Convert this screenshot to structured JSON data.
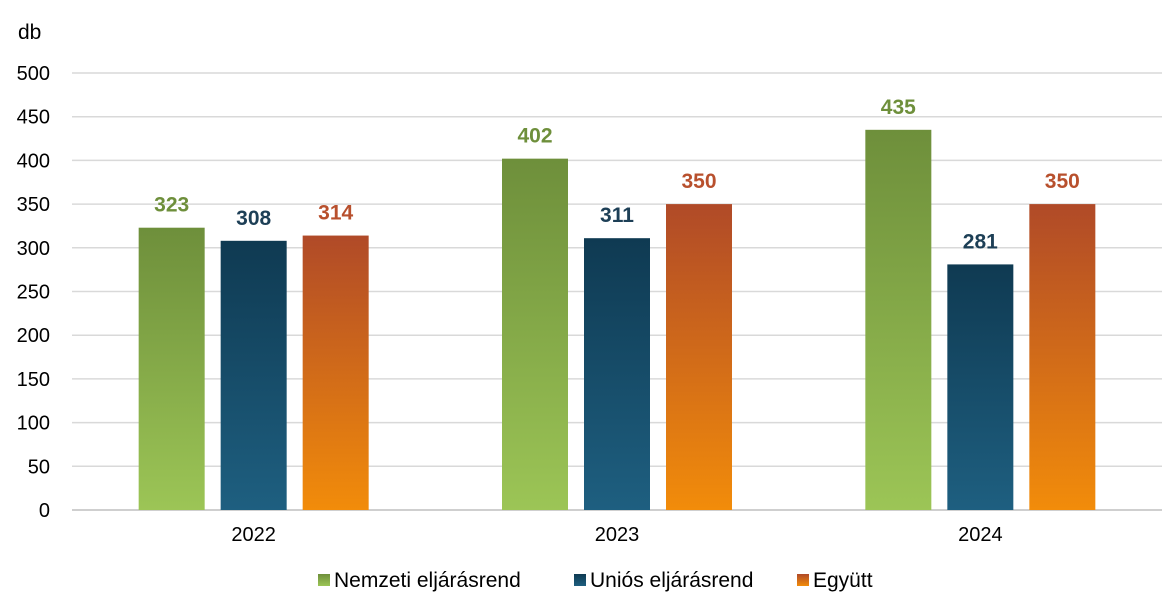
{
  "chart_data": {
    "type": "bar",
    "ylabel": "db",
    "categories": [
      "2022",
      "2023",
      "2024"
    ],
    "ylim": [
      0,
      500
    ],
    "yticks": [
      0,
      50,
      100,
      150,
      200,
      250,
      300,
      350,
      400,
      450,
      500
    ],
    "grid": true,
    "legend_position": "bottom",
    "series": [
      {
        "name": "Nemzeti eljárásrend",
        "values": [
          323,
          402,
          435
        ],
        "color_top": "#6e8f3b",
        "color_bottom": "#9cc556",
        "label_color": "#6e8f3b"
      },
      {
        "name": "Uniós eljárásrend",
        "values": [
          308,
          311,
          281
        ],
        "color_top": "#0f3a52",
        "color_bottom": "#1e5f80",
        "label_color": "#1d3f56"
      },
      {
        "name": "Együtt",
        "values": [
          314,
          350,
          350
        ],
        "color_top": "#b04a28",
        "color_bottom": "#f28c0a",
        "label_color": "#b8502d"
      }
    ]
  }
}
